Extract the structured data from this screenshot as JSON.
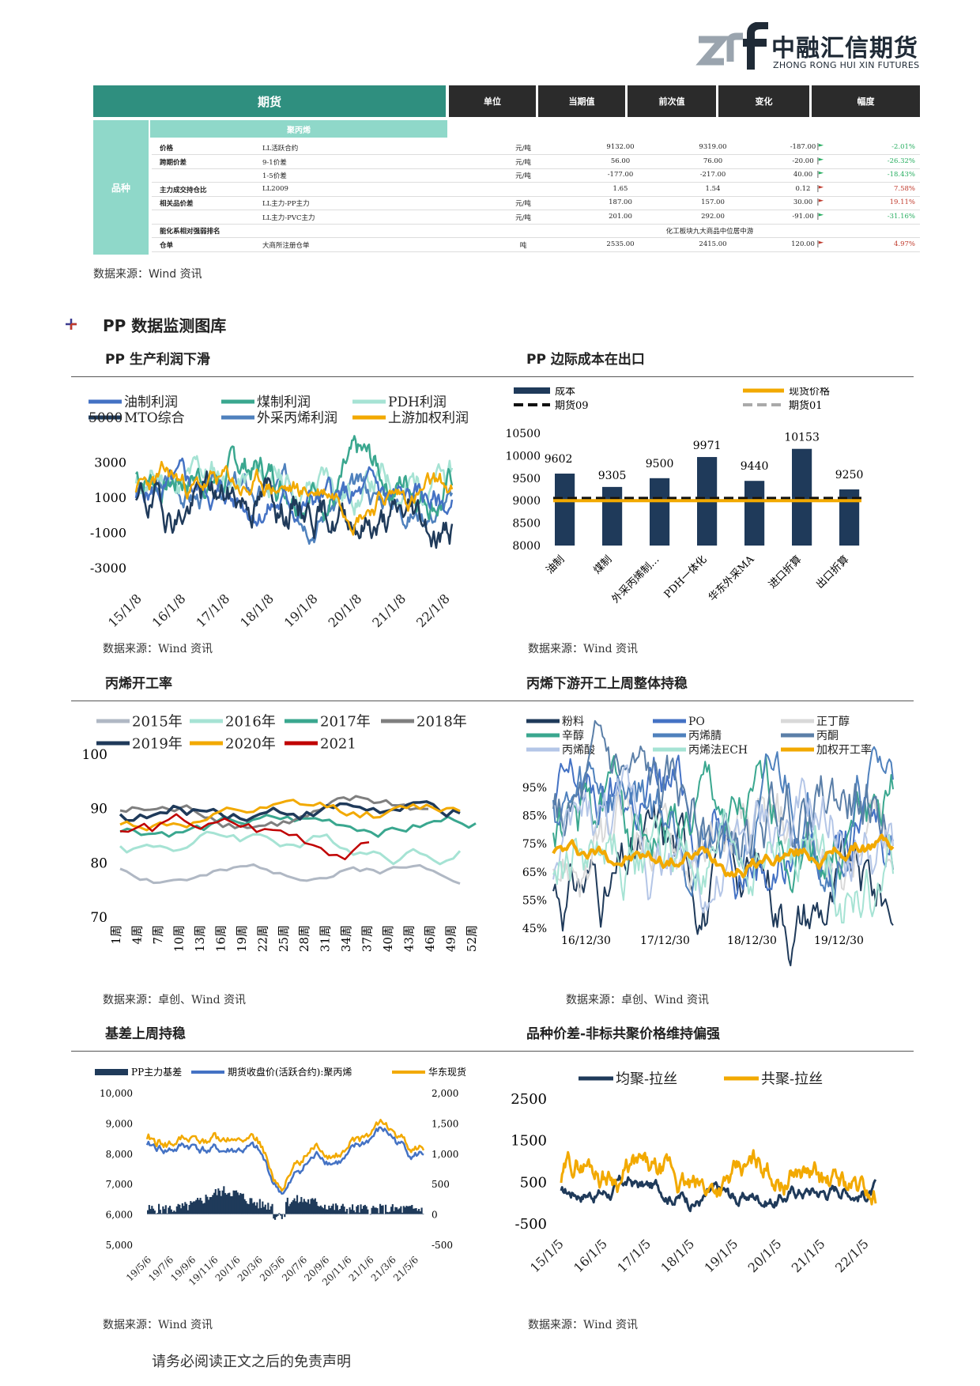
{
  "brand": {
    "name_cn": "中融汇信期货",
    "name_en": "ZHONG RONG HUI XIN FUTURES"
  },
  "table": {
    "headers": {
      "futures": "期货",
      "unit": "单位",
      "current": "当期值",
      "previous": "前次值",
      "change": "变化",
      "pct": "幅度"
    },
    "subheader": "聚丙烯",
    "kind_label": "品种",
    "rows": [
      {
        "cat": "价格",
        "name": "LL活跃合约",
        "unit": "元/吨",
        "cur": "9132.00",
        "prev": "9319.00",
        "chg": "-187.00",
        "pct": "-2.01%",
        "dir": "down"
      },
      {
        "cat": "跨期价差",
        "name": "9-1价差",
        "unit": "元/吨",
        "cur": "56.00",
        "prev": "76.00",
        "chg": "-20.00",
        "pct": "-26.32%",
        "dir": "down"
      },
      {
        "cat": "",
        "name": "1-5价差",
        "unit": "元/吨",
        "cur": "-177.00",
        "prev": "-217.00",
        "chg": "40.00",
        "pct": "-18.43%",
        "dir": "down"
      },
      {
        "cat": "主力成交持仓比",
        "name": "LL2009",
        "unit": "",
        "cur": "1.65",
        "prev": "1.54",
        "chg": "0.12",
        "pct": "7.58%",
        "dir": "up"
      },
      {
        "cat": "相关品价差",
        "name": "LL主力-PP主力",
        "unit": "元/吨",
        "cur": "187.00",
        "prev": "157.00",
        "chg": "30.00",
        "pct": "19.11%",
        "dir": "up"
      },
      {
        "cat": "",
        "name": "LL主力-PVC主力",
        "unit": "元/吨",
        "cur": "201.00",
        "prev": "292.00",
        "chg": "-91.00",
        "pct": "-31.16%",
        "dir": "down"
      },
      {
        "cat": "能化系相对强弱排名",
        "name": "",
        "unit": "",
        "cur": "",
        "prev": "",
        "chg": "",
        "pct": "",
        "dir": "none",
        "span": "化工板块九大商品中位居中游"
      },
      {
        "cat": "仓单",
        "name": "大商所注册仓单",
        "unit": "吨",
        "cur": "2535.00",
        "prev": "2415.00",
        "chg": "120.00",
        "pct": "4.97%",
        "dir": "up"
      }
    ],
    "source": "数据来源：Wind 资讯"
  },
  "section_title": "PP 数据监测图库",
  "charts": {
    "c1": {
      "title": "PP 生产利润下滑",
      "source": "数据来源：Wind 资讯"
    },
    "c2": {
      "title": "PP 边际成本在出口",
      "source": "数据来源：Wind 资讯"
    },
    "c3": {
      "title": "丙烯开工率",
      "source": "数据来源：卓创、Wind 资讯"
    },
    "c4": {
      "title": "丙烯下游开工上周整体持稳",
      "source": "数据来源：卓创、Wind 资讯"
    },
    "c5": {
      "title": "基差上周持稳",
      "source": "数据来源：Wind 资讯"
    },
    "c6": {
      "title": "品种价差-非标共聚价格维持偏强",
      "source": "数据来源：Wind 资讯"
    }
  },
  "footer": "请务必阅读正文之后的免责声明",
  "chart_data": [
    {
      "type": "line",
      "id": "c1",
      "legend": [
        "油制利润",
        "煤制利润",
        "PDH利润",
        "MTO综合",
        "外采丙烯利润",
        "上游加权利润"
      ],
      "legend_prefix": "5000",
      "colors": [
        "#4472c4",
        "#3aa78f",
        "#a6e3d4",
        "#1f3a5a",
        "#4f81bd",
        "#f2a900"
      ],
      "y_ticks": [
        "3000",
        "1000",
        "-1000",
        "-3000"
      ],
      "ylim": [
        -3000,
        5000
      ],
      "x_ticks": [
        "15/1/8",
        "16/1/8",
        "17/1/8",
        "18/1/8",
        "19/1/8",
        "20/1/8",
        "21/1/8",
        "22/1/8"
      ]
    },
    {
      "type": "bar",
      "id": "c2",
      "legend": [
        "成本",
        "现货价格",
        "期货09",
        "期货01"
      ],
      "categories": [
        "油制",
        "煤制",
        "外采丙烯制…",
        "PDH一体化",
        "华东外采MA",
        "进口折算",
        "出口折算"
      ],
      "values": [
        9602,
        9305,
        9500,
        9971,
        9440,
        10153,
        9250
      ],
      "spot": 9000,
      "fut09": 9050,
      "fut01": 9050,
      "y_ticks": [
        "10500",
        "10000",
        "9500",
        "9000",
        "8500",
        "8000"
      ],
      "ylim": [
        8000,
        10500
      ],
      "colors": {
        "bar": "#1f3a5a",
        "spot": "#f2a900",
        "fut09": "#111111",
        "fut01": "#aaaaaa"
      }
    },
    {
      "type": "line",
      "id": "c3",
      "legend": [
        "2015年",
        "2016年",
        "2017年",
        "2018年",
        "2019年",
        "2020年",
        "2021"
      ],
      "colors": [
        "#b0b8c4",
        "#a6e3d4",
        "#3aa78f",
        "#7f7f7f",
        "#1f3a5a",
        "#f2a900",
        "#c00000"
      ],
      "y_ticks": [
        "100",
        "90",
        "80",
        "70"
      ],
      "ylim": [
        70,
        100
      ],
      "x_ticks": [
        "1周",
        "4周",
        "7周",
        "10周",
        "13周",
        "16周",
        "19周",
        "22周",
        "25周",
        "28周",
        "31周",
        "34周",
        "37周",
        "40周",
        "43周",
        "46周",
        "49周",
        "52周"
      ]
    },
    {
      "type": "line",
      "id": "c4",
      "legend": [
        "粉料",
        "PO",
        "正丁醇",
        "辛醇",
        "丙烯腈",
        "丙酮",
        "丙烯酸",
        "丙烯法ECH",
        "加权开工率"
      ],
      "colors": [
        "#1f3a5a",
        "#4472c4",
        "#d9d9d9",
        "#3aa78f",
        "#4f81bd",
        "#5b7fa8",
        "#b4c6e7",
        "#a6e3d4",
        "#f2a900"
      ],
      "y_ticks": [
        "95%",
        "85%",
        "75%",
        "65%",
        "55%",
        "45%"
      ],
      "ylim": [
        45,
        95
      ],
      "x_ticks": [
        "16/12/30",
        "17/12/30",
        "18/12/30",
        "19/12/30"
      ]
    },
    {
      "type": "line",
      "id": "c5",
      "legend": [
        "PP主力基差",
        "期货收盘价(活跃合约):聚丙烯",
        "华东现货"
      ],
      "colors": [
        "#1f3a5a",
        "#4472c4",
        "#f2a900"
      ],
      "y_ticks_left": [
        "10,000",
        "9,000",
        "8,000",
        "7,000",
        "6,000",
        "5,000"
      ],
      "y_ticks_right": [
        "2,000",
        "1,500",
        "1,000",
        "500",
        "0",
        "-500"
      ],
      "x_ticks": [
        "19/5/6",
        "19/7/6",
        "19/9/6",
        "19/11/6",
        "20/1/6",
        "20/3/6",
        "20/5/6",
        "20/7/6",
        "20/9/6",
        "20/11/6",
        "21/1/6",
        "21/3/6",
        "21/5/6"
      ]
    },
    {
      "type": "line",
      "id": "c6",
      "legend": [
        "均聚-拉丝",
        "共聚-拉丝"
      ],
      "colors": [
        "#1f3a5a",
        "#f2a900"
      ],
      "y_ticks": [
        "2500",
        "1500",
        "500",
        "-500"
      ],
      "ylim": [
        -500,
        2500
      ],
      "x_ticks": [
        "15/1/5",
        "16/1/5",
        "17/1/5",
        "18/1/5",
        "19/1/5",
        "20/1/5",
        "21/1/5",
        "22/1/5"
      ]
    }
  ]
}
